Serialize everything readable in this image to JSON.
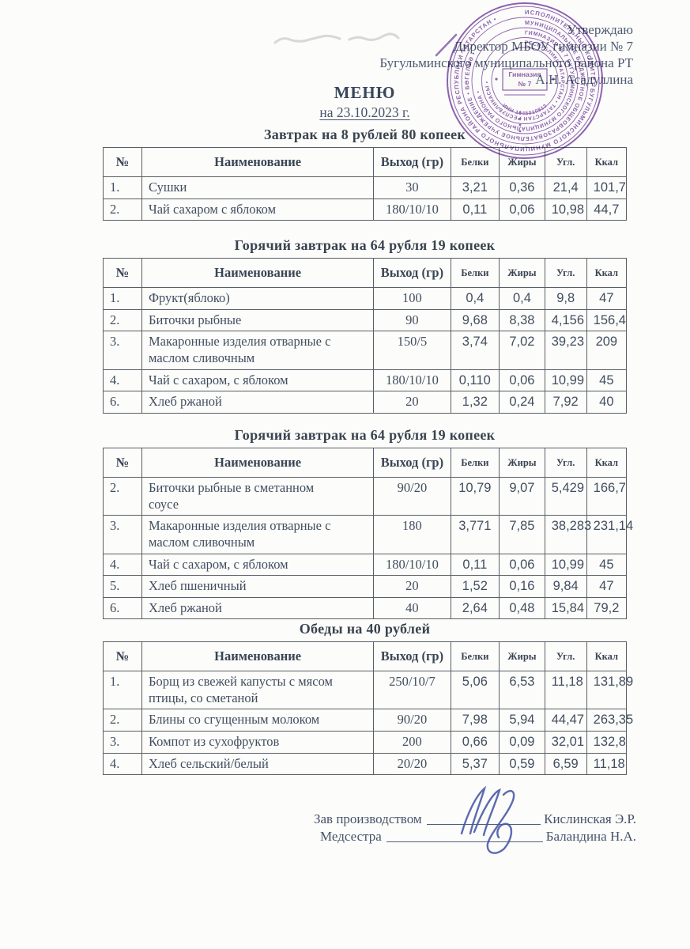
{
  "approval": {
    "line1": "Утверждаю",
    "line2": "Директор МБОУ гимназии № 7",
    "line3": "Бугульминского муниципального района РТ",
    "line4": "А.Н. Асадуллина"
  },
  "menu": {
    "title": "МЕНЮ",
    "date": "на 23.10.2023 г."
  },
  "tables": [
    {
      "title": "Завтрак на 8 рублей 80 копеек",
      "columns": [
        "№",
        "Наименование",
        "Выход (гр)",
        "Белки",
        "Жиры",
        "Угл.",
        "Ккал"
      ],
      "rows": [
        [
          "1.",
          "Сушки",
          "30",
          "3,21",
          "0,36",
          "21,4",
          "101,7"
        ],
        [
          "2.",
          "Чай сахаром с яблоком",
          "180/10/10",
          "0,11",
          "0,06",
          "10,98",
          "44,7"
        ]
      ]
    },
    {
      "title": "Горячий завтрак на 64 рубля 19 копеек",
      "columns": [
        "№",
        "Наименование",
        "Выход (гр)",
        "Белки",
        "Жиры",
        "Угл.",
        "Ккал"
      ],
      "rows": [
        [
          "1.",
          "Фрукт(яблоко)",
          "100",
          "0,4",
          "0,4",
          "9,8",
          "47"
        ],
        [
          "2.",
          "Биточки рыбные",
          "90",
          "9,68",
          "8,38",
          "4,156",
          "156,4"
        ],
        [
          "3.",
          "Макаронные изделия отварные с\nмаслом сливочным",
          "150/5",
          "3,74",
          "7,02",
          "39,23",
          "209"
        ],
        [
          "4.",
          "Чай с сахаром, с яблоком",
          "180/10/10",
          "0,110",
          "0,06",
          "10,99",
          "45"
        ],
        [
          "6.",
          "Хлеб ржаной",
          "20",
          "1,32",
          "0,24",
          "7,92",
          "40"
        ]
      ]
    },
    {
      "title": "Горячий завтрак на 64 рубля 19 копеек",
      "columns": [
        "№",
        "Наименование",
        "Выход (гр)",
        "Белки",
        "Жиры",
        "Угл.",
        "Ккал"
      ],
      "rows": [
        [
          "2.",
          "Биточки рыбные в сметанном\nсоусе",
          "90/20",
          "10,79",
          "9,07",
          "5,429",
          "166,7"
        ],
        [
          "3.",
          "Макаронные изделия отварные с\nмаслом сливочным",
          "180",
          "3,771",
          "7,85",
          "38,283",
          "231,14"
        ],
        [
          "4.",
          "Чай с сахаром, с яблоком",
          "180/10/10",
          "0,11",
          "0,06",
          "10,99",
          "45"
        ],
        [
          "5.",
          "Хлеб пшеничный",
          "20",
          "1,52",
          "0,16",
          "9,84",
          "47"
        ],
        [
          "6.",
          "Хлеб ржаной",
          "40",
          "2,64",
          "0,48",
          "15,84",
          "79,2"
        ]
      ]
    },
    {
      "title": "Обеды на 40 рублей",
      "columns": [
        "№",
        "Наименование",
        "Выход (гр)",
        "Белки",
        "Жиры",
        "Угл.",
        "Ккал"
      ],
      "rows": [
        [
          "1.",
          "Борщ из свежей капусты с мясом\nптицы, со сметаной",
          "250/10/7",
          "5,06",
          "6,53",
          "11,18",
          "131,89"
        ],
        [
          "2.",
          "Блины со сгущенным молоком",
          "90/20",
          "7,98",
          "5,94",
          "44,47",
          "263,35"
        ],
        [
          "3.",
          "Компот из сухофруктов",
          "200",
          "0,66",
          "0,09",
          "32,01",
          "132,8"
        ],
        [
          "4.",
          "Хлеб сельский/белый",
          "20/20",
          "5,37",
          "0,59",
          "6,59",
          "11,18"
        ]
      ]
    }
  ],
  "footer": {
    "row1": {
      "role": "Зав производством",
      "name": "Кислинская Э.Р."
    },
    "row2": {
      "role": "Медсестра",
      "name": "Баландина Н.А."
    }
  },
  "stamp": {
    "ring1": "ИСПОЛНИТЕЛЬНЫЙ КОМИТЕТ БУГУЛЬМИНСКОГО МУНИЦИПАЛЬНОГО РАЙОНА РЕСПУБЛИКИ ТАТАРСТАН • ",
    "ring2": "МУНИЦИПАЛЬНОЕ БЮДЖЕТНОЕ ОБЩЕОБРАЗОВАТЕЛЬНОЕ УЧРЕЖДЕНИЕ • БӨГЕЛМӘ • ",
    "ring3": "ГИМНАЗИЯ № 7 БУГУЛЬМИНСКОГО МУНИЦИПАЛЬНОГО РАЙОНА • ",
    "ring4": "РЕСПУБЛИКИ ТАТАРСТАН • ТАТАРСТАН РЕСПУБЛИКАСЫ • ",
    "inn": "ИНН 1645010813",
    "center_line1": "Гимназия",
    "center_line2": "№ 7"
  },
  "colors": {
    "stamp_ink": "#8456ad",
    "document_ink": "#424e5f",
    "signature_ink": "#4556a8",
    "table_border": "#5a5f66"
  }
}
